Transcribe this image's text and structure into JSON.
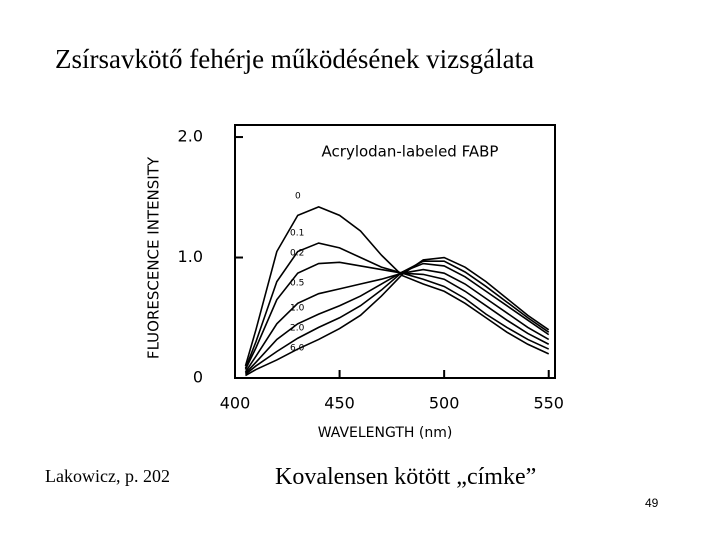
{
  "slide": {
    "title": "Zsírsavkötő fehérje működésének vizsgálata",
    "source": "Lakowicz, p. 202",
    "caption": "Kovalensen kötött „címke”",
    "page_number": "49"
  },
  "chart_data": {
    "type": "line",
    "title": "Acrylodan-labeled FABP",
    "x_label": "WAVELENGTH (nm)",
    "y_label": "FLUORESCENCE INTENSITY",
    "x": [
      405,
      410,
      420,
      430,
      440,
      450,
      460,
      470,
      480,
      490,
      500,
      510,
      520,
      530,
      540,
      550
    ],
    "xlim": [
      400,
      553
    ],
    "xticks": [
      400,
      450,
      500,
      550
    ],
    "ylim": [
      0,
      2.1
    ],
    "yticks": [
      0,
      {
        "value": 1,
        "label": "1.0"
      },
      {
        "value": 2,
        "label": "2.0"
      }
    ],
    "series": [
      {
        "name": "0",
        "color": "#000000",
        "values": [
          0.1,
          0.4,
          1.05,
          1.35,
          1.42,
          1.35,
          1.22,
          1.02,
          0.85,
          0.78,
          0.72,
          0.62,
          0.5,
          0.38,
          0.28,
          0.2
        ]
      },
      {
        "name": "0.1",
        "color": "#000000",
        "values": [
          0.08,
          0.3,
          0.8,
          1.05,
          1.12,
          1.08,
          1.0,
          0.92,
          0.87,
          0.82,
          0.76,
          0.66,
          0.53,
          0.42,
          0.32,
          0.24
        ]
      },
      {
        "name": "0.2",
        "color": "#000000",
        "values": [
          0.07,
          0.25,
          0.65,
          0.87,
          0.95,
          0.96,
          0.93,
          0.9,
          0.87,
          0.86,
          0.82,
          0.72,
          0.6,
          0.48,
          0.37,
          0.28
        ]
      },
      {
        "name": "0.5",
        "color": "#000000",
        "values": [
          0.05,
          0.18,
          0.45,
          0.62,
          0.7,
          0.74,
          0.78,
          0.82,
          0.87,
          0.9,
          0.87,
          0.78,
          0.66,
          0.54,
          0.42,
          0.32
        ]
      },
      {
        "name": "1.0",
        "color": "#000000",
        "values": [
          0.04,
          0.13,
          0.32,
          0.45,
          0.53,
          0.6,
          0.68,
          0.78,
          0.88,
          0.95,
          0.93,
          0.84,
          0.72,
          0.6,
          0.48,
          0.36
        ]
      },
      {
        "name": "2.0",
        "color": "#000000",
        "values": [
          0.03,
          0.1,
          0.22,
          0.33,
          0.42,
          0.5,
          0.6,
          0.73,
          0.88,
          0.97,
          0.97,
          0.88,
          0.76,
          0.63,
          0.5,
          0.38
        ]
      },
      {
        "name": "6.0",
        "color": "#000000",
        "values": [
          0.02,
          0.07,
          0.15,
          0.24,
          0.32,
          0.41,
          0.52,
          0.68,
          0.86,
          0.98,
          1.0,
          0.92,
          0.8,
          0.66,
          0.52,
          0.4
        ]
      }
    ]
  }
}
